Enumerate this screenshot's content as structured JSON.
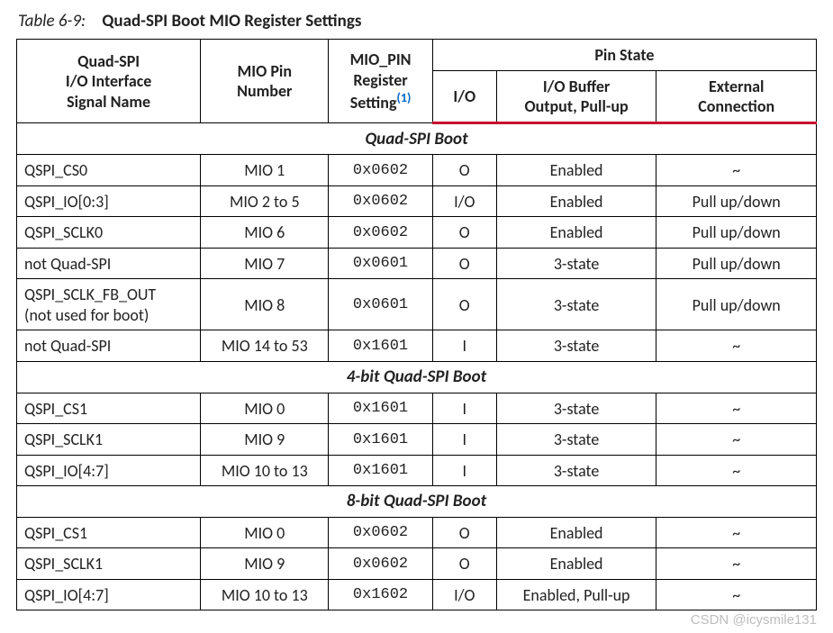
{
  "caption": {
    "label": "Table 6-9:",
    "title": "Quad-SPI Boot MIO Register Settings"
  },
  "head": {
    "c1": "Quad-SPI\nI/O Interface\nSignal Name",
    "c2": "MIO Pin\nNumber",
    "c3": "MIO_PIN\nRegister\nSetting",
    "c3note": "(1)",
    "pinstate": "Pin State",
    "c4": "I/O",
    "c5": "I/O Buffer\nOutput, Pull-up",
    "c6": "External\nConnection"
  },
  "sections": [
    {
      "title": "Quad-SPI Boot",
      "rows": [
        {
          "n": "QSPI_CS0",
          "p": "MIO 1",
          "r": "0x0602",
          "io": "O",
          "buf": "Enabled",
          "ext": "~"
        },
        {
          "n": "QSPI_IO[0:3]",
          "p": "MIO 2 to 5",
          "r": "0x0602",
          "io": "I/O",
          "buf": "Enabled",
          "ext": "Pull up/down"
        },
        {
          "n": "QSPI_SCLK0",
          "p": "MIO 6",
          "r": "0x0602",
          "io": "O",
          "buf": "Enabled",
          "ext": "Pull up/down"
        },
        {
          "n": "not Quad-SPI",
          "p": "MIO 7",
          "r": "0x0601",
          "io": "O",
          "buf": "3-state",
          "ext": "Pull up/down"
        },
        {
          "n": "QSPI_SCLK_FB_OUT\n(not used for boot)",
          "p": "MIO 8",
          "r": "0x0601",
          "io": "O",
          "buf": "3-state",
          "ext": "Pull up/down"
        },
        {
          "n": "not Quad-SPI",
          "p": "MIO 14 to 53",
          "r": "0x1601",
          "io": "I",
          "buf": "3-state",
          "ext": "~"
        }
      ]
    },
    {
      "title": "4-bit Quad-SPI Boot",
      "rows": [
        {
          "n": "QSPI_CS1",
          "p": "MIO 0",
          "r": "0x1601",
          "io": "I",
          "buf": "3-state",
          "ext": "~"
        },
        {
          "n": "QSPI_SCLK1",
          "p": "MIO 9",
          "r": "0x1601",
          "io": "I",
          "buf": "3-state",
          "ext": "~"
        },
        {
          "n": "QSPI_IO[4:7]",
          "p": "MIO 10 to 13",
          "r": "0x1601",
          "io": "I",
          "buf": "3-state",
          "ext": "~"
        }
      ]
    },
    {
      "title": "8-bit Quad-SPI Boot",
      "rows": [
        {
          "n": "QSPI_CS1",
          "p": "MIO 0",
          "r": "0x0602",
          "io": "O",
          "buf": "Enabled",
          "ext": "~"
        },
        {
          "n": "QSPI_SCLK1",
          "p": "MIO 9",
          "r": "0x0602",
          "io": "O",
          "buf": "Enabled",
          "ext": "~"
        },
        {
          "n": "QSPI_IO[4:7]",
          "p": "MIO 10 to 13",
          "r": "0x1602",
          "io": "I/O",
          "buf": "Enabled, Pull-up",
          "ext": "~"
        }
      ]
    }
  ],
  "watermark": "CSDN @icysmile131"
}
